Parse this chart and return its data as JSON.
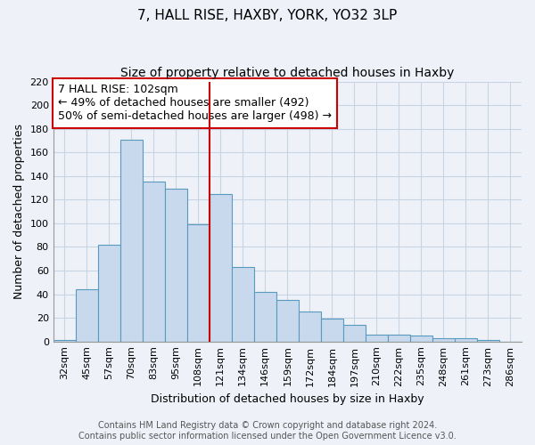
{
  "title": "7, HALL RISE, HAXBY, YORK, YO32 3LP",
  "subtitle": "Size of property relative to detached houses in Haxby",
  "xlabel": "Distribution of detached houses by size in Haxby",
  "ylabel": "Number of detached properties",
  "categories": [
    "32sqm",
    "45sqm",
    "57sqm",
    "70sqm",
    "83sqm",
    "95sqm",
    "108sqm",
    "121sqm",
    "134sqm",
    "146sqm",
    "159sqm",
    "172sqm",
    "184sqm",
    "197sqm",
    "210sqm",
    "222sqm",
    "235sqm",
    "248sqm",
    "261sqm",
    "273sqm",
    "286sqm"
  ],
  "values": [
    1,
    44,
    82,
    171,
    135,
    129,
    99,
    125,
    63,
    42,
    35,
    25,
    19,
    14,
    6,
    6,
    5,
    3,
    3,
    1,
    0
  ],
  "bar_color": "#c8d9ed",
  "bar_edge_color": "#5a9abf",
  "grid_color": "#c8d4e3",
  "background_color": "#eef2f8",
  "ylim": [
    0,
    220
  ],
  "yticks": [
    0,
    20,
    40,
    60,
    80,
    100,
    120,
    140,
    160,
    180,
    200,
    220
  ],
  "annotation_text_line1": "7 HALL RISE: 102sqm",
  "annotation_text_line2": "← 49% of detached houses are smaller (492)",
  "annotation_text_line3": "50% of semi-detached houses are larger (498) →",
  "ref_line_color": "#cc0000",
  "ref_line_x": 6.5,
  "footer_line1": "Contains HM Land Registry data © Crown copyright and database right 2024.",
  "footer_line2": "Contains public sector information licensed under the Open Government Licence v3.0.",
  "title_fontsize": 11,
  "subtitle_fontsize": 10,
  "axis_label_fontsize": 9,
  "tick_fontsize": 8,
  "annotation_fontsize": 9,
  "footer_fontsize": 7
}
